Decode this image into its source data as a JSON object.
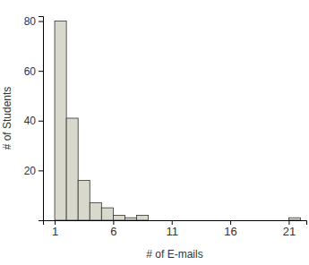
{
  "chart_data": {
    "type": "histogram",
    "x_label": "# of E-mails",
    "y_label": "# of Students",
    "bins": [
      1,
      2,
      3,
      4,
      5,
      6,
      7,
      8,
      9,
      10,
      11,
      12,
      13,
      14,
      15,
      16,
      17,
      18,
      19,
      20,
      21,
      22
    ],
    "counts": [
      80,
      41,
      16,
      7,
      5,
      2,
      1,
      2,
      0,
      0,
      0,
      0,
      0,
      0,
      0,
      0,
      0,
      0,
      0,
      0,
      1
    ],
    "color": "#d8d8cc",
    "xlim": [
      0,
      22.5
    ],
    "ylim": [
      0,
      82
    ],
    "xticks": [
      1,
      6,
      11,
      16,
      21
    ],
    "yticks": [
      20,
      40,
      60,
      80
    ],
    "grid": false
  }
}
